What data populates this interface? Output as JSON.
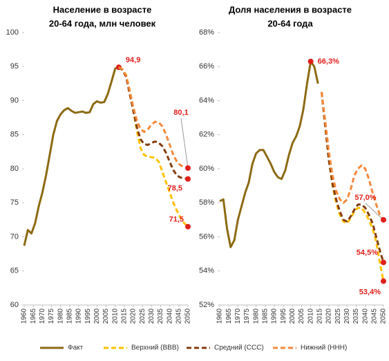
{
  "chart_data": [
    {
      "type": "line",
      "title": [
        "Население в возрасте",
        "20-64 года, млн человек"
      ],
      "x": [
        1960,
        1962,
        1964,
        1966,
        1968,
        1970,
        1972,
        1974,
        1976,
        1978,
        1980,
        1982,
        1984,
        1986,
        1988,
        1990,
        1992,
        1994,
        1996,
        1998,
        2000,
        2002,
        2004,
        2006,
        2008,
        2010,
        2012,
        2014,
        2016,
        2018,
        2020,
        2022,
        2024,
        2026,
        2028,
        2030,
        2032,
        2034,
        2036,
        2038,
        2040,
        2042,
        2044,
        2046,
        2048,
        2050
      ],
      "xlim": [
        1960,
        2050
      ],
      "xticks": [
        1960,
        1965,
        1970,
        1975,
        1980,
        1985,
        1990,
        1995,
        2000,
        2005,
        2010,
        2015,
        2020,
        2025,
        2030,
        2035,
        2040,
        2045,
        2050
      ],
      "ylim": [
        60,
        100
      ],
      "yticks": [
        60,
        65,
        70,
        75,
        80,
        85,
        90,
        95,
        100
      ],
      "grid": false,
      "series": [
        {
          "name": "Факт",
          "color": "#8c6a12",
          "style": "solid",
          "values": [
            68.7,
            71.0,
            70.5,
            72.0,
            74.5,
            76.5,
            79.0,
            82.0,
            85.0,
            87.0,
            88.0,
            88.6,
            88.9,
            88.5,
            88.2,
            88.3,
            88.4,
            88.2,
            88.3,
            89.5,
            89.9,
            89.7,
            89.8,
            91.0,
            92.8,
            94.7,
            94.9,
            94.5,
            null,
            null,
            null,
            null,
            null,
            null,
            null,
            null,
            null,
            null,
            null,
            null,
            null,
            null,
            null,
            null,
            null,
            null
          ],
          "value_labels": [
            null,
            null,
            null,
            null,
            null,
            null,
            null,
            null,
            null,
            null,
            null,
            null,
            null,
            null,
            null,
            null,
            null,
            null,
            null,
            null,
            null,
            null,
            null,
            null,
            null,
            null,
            "94,9",
            null,
            null,
            null,
            null,
            null,
            null,
            null,
            null,
            null,
            null,
            null,
            null,
            null,
            null,
            null,
            null,
            null,
            null,
            null
          ]
        },
        {
          "name": "Верхний (ВВВ)",
          "color": "#ffc000",
          "style": "dashed",
          "values": [
            null,
            null,
            null,
            null,
            null,
            null,
            null,
            null,
            null,
            null,
            null,
            null,
            null,
            null,
            null,
            null,
            null,
            null,
            null,
            null,
            null,
            null,
            null,
            null,
            null,
            null,
            94.9,
            94.5,
            93.8,
            91.5,
            88.5,
            85.5,
            83.0,
            82.0,
            81.8,
            81.7,
            81.6,
            81.0,
            79.5,
            78.0,
            76.5,
            75.0,
            73.8,
            72.8,
            72.0,
            71.5
          ],
          "value_labels": [
            null,
            null,
            null,
            null,
            null,
            null,
            null,
            null,
            null,
            null,
            null,
            null,
            null,
            null,
            null,
            null,
            null,
            null,
            null,
            null,
            null,
            null,
            null,
            null,
            null,
            null,
            null,
            null,
            null,
            null,
            null,
            null,
            null,
            null,
            null,
            null,
            null,
            null,
            null,
            null,
            null,
            null,
            null,
            null,
            null,
            "71,5"
          ]
        },
        {
          "name": "Средний (ССС)",
          "color": "#843c0c",
          "style": "dashed",
          "values": [
            null,
            null,
            null,
            null,
            null,
            null,
            null,
            null,
            null,
            null,
            null,
            null,
            null,
            null,
            null,
            null,
            null,
            null,
            null,
            null,
            null,
            null,
            null,
            null,
            null,
            null,
            94.9,
            94.5,
            93.5,
            91.0,
            88.5,
            86.0,
            84.3,
            83.6,
            83.5,
            83.8,
            84.0,
            83.8,
            83.3,
            82.3,
            81.0,
            79.8,
            79.0,
            78.7,
            78.6,
            78.5
          ],
          "value_labels": [
            null,
            null,
            null,
            null,
            null,
            null,
            null,
            null,
            null,
            null,
            null,
            null,
            null,
            null,
            null,
            null,
            null,
            null,
            null,
            null,
            null,
            null,
            null,
            null,
            null,
            null,
            null,
            null,
            null,
            null,
            null,
            null,
            null,
            null,
            null,
            null,
            null,
            null,
            null,
            null,
            null,
            null,
            null,
            null,
            null,
            "78,5"
          ]
        },
        {
          "name": "Нижний (ННН)",
          "color": "#f4883a",
          "style": "dashed",
          "values": [
            null,
            null,
            null,
            null,
            null,
            null,
            null,
            null,
            null,
            null,
            null,
            null,
            null,
            null,
            null,
            null,
            null,
            null,
            null,
            null,
            null,
            null,
            null,
            null,
            null,
            null,
            94.9,
            94.6,
            93.7,
            91.5,
            89.0,
            87.0,
            85.8,
            85.4,
            85.8,
            86.5,
            86.9,
            86.8,
            86.2,
            85.0,
            83.5,
            82.0,
            81.0,
            80.5,
            80.2,
            80.1
          ],
          "value_labels": [
            null,
            null,
            null,
            null,
            null,
            null,
            null,
            null,
            null,
            null,
            null,
            null,
            null,
            null,
            null,
            null,
            null,
            null,
            null,
            null,
            null,
            null,
            null,
            null,
            null,
            null,
            null,
            null,
            null,
            null,
            null,
            null,
            null,
            null,
            null,
            null,
            null,
            null,
            null,
            null,
            null,
            null,
            null,
            null,
            null,
            "80,1"
          ]
        }
      ]
    },
    {
      "type": "line",
      "title": [
        "Доля населения в возрасте",
        "20-64 года"
      ],
      "x": [
        1960,
        1962,
        1964,
        1966,
        1968,
        1970,
        1972,
        1974,
        1976,
        1978,
        1980,
        1982,
        1984,
        1986,
        1988,
        1990,
        1992,
        1994,
        1996,
        1998,
        2000,
        2002,
        2004,
        2006,
        2008,
        2010,
        2012,
        2014,
        2016,
        2018,
        2020,
        2022,
        2024,
        2026,
        2028,
        2030,
        2032,
        2034,
        2036,
        2038,
        2040,
        2042,
        2044,
        2046,
        2048,
        2050
      ],
      "xlim": [
        1960,
        2050
      ],
      "xticks": [
        1960,
        1965,
        1970,
        1975,
        1980,
        1985,
        1990,
        1995,
        2000,
        2005,
        2010,
        2015,
        2020,
        2025,
        2030,
        2035,
        2040,
        2045,
        2050
      ],
      "ylim": [
        52,
        68
      ],
      "yticks": [
        {
          "value": 52,
          "label": "52%"
        },
        {
          "value": 54,
          "label": "54%"
        },
        {
          "value": 56,
          "label": "56%"
        },
        {
          "value": 58,
          "label": "58%"
        },
        {
          "value": 60,
          "label": "60%"
        },
        {
          "value": 62,
          "label": "62%"
        },
        {
          "value": 64,
          "label": "64%"
        },
        {
          "value": 66,
          "label": "66%"
        },
        {
          "value": 68,
          "label": "68%"
        }
      ],
      "grid": false,
      "series": [
        {
          "color": "#8c6a12",
          "style": "solid",
          "values": [
            58.1,
            58.2,
            56.5,
            55.4,
            55.8,
            57.0,
            57.8,
            58.6,
            59.2,
            60.3,
            60.9,
            61.1,
            61.1,
            60.7,
            60.3,
            59.8,
            59.5,
            59.4,
            59.9,
            60.8,
            61.5,
            61.9,
            62.5,
            63.5,
            65.0,
            66.3,
            66.0,
            65.0,
            null,
            null,
            null,
            null,
            null,
            null,
            null,
            null,
            null,
            null,
            null,
            null,
            null,
            null,
            null,
            null,
            null,
            null
          ],
          "value_labels": [
            null,
            null,
            null,
            null,
            null,
            null,
            null,
            null,
            null,
            null,
            null,
            null,
            null,
            null,
            null,
            null,
            null,
            null,
            null,
            null,
            null,
            null,
            null,
            null,
            null,
            "66,3%",
            null,
            null,
            null,
            null,
            null,
            null,
            null,
            null,
            null,
            null,
            null,
            null,
            null,
            null,
            null,
            null,
            null,
            null,
            null,
            null
          ]
        },
        {
          "color": "#ffc000",
          "style": "dashed",
          "values": [
            null,
            null,
            null,
            null,
            null,
            null,
            null,
            null,
            null,
            null,
            null,
            null,
            null,
            null,
            null,
            null,
            null,
            null,
            null,
            null,
            null,
            null,
            null,
            null,
            null,
            null,
            null,
            null,
            64.5,
            62.5,
            60.5,
            59.0,
            58.0,
            57.3,
            56.9,
            56.8,
            57.1,
            57.5,
            57.7,
            57.7,
            57.4,
            57.0,
            56.5,
            55.7,
            54.5,
            53.4
          ],
          "value_labels": [
            null,
            null,
            null,
            null,
            null,
            null,
            null,
            null,
            null,
            null,
            null,
            null,
            null,
            null,
            null,
            null,
            null,
            null,
            null,
            null,
            null,
            null,
            null,
            null,
            null,
            null,
            null,
            null,
            null,
            null,
            null,
            null,
            null,
            null,
            null,
            null,
            null,
            null,
            null,
            null,
            null,
            null,
            null,
            null,
            null,
            "53,4%"
          ]
        },
        {
          "color": "#843c0c",
          "style": "dashed",
          "values": [
            null,
            null,
            null,
            null,
            null,
            null,
            null,
            null,
            null,
            null,
            null,
            null,
            null,
            null,
            null,
            null,
            null,
            null,
            null,
            null,
            null,
            null,
            null,
            null,
            null,
            null,
            null,
            null,
            64.5,
            62.5,
            60.5,
            59.1,
            58.2,
            57.5,
            57.0,
            56.9,
            57.2,
            57.6,
            57.9,
            57.9,
            57.7,
            57.3,
            56.8,
            56.0,
            55.2,
            54.5
          ],
          "value_labels": [
            null,
            null,
            null,
            null,
            null,
            null,
            null,
            null,
            null,
            null,
            null,
            null,
            null,
            null,
            null,
            null,
            null,
            null,
            null,
            null,
            null,
            null,
            null,
            null,
            null,
            null,
            null,
            null,
            null,
            null,
            null,
            null,
            null,
            null,
            null,
            null,
            null,
            null,
            null,
            null,
            null,
            null,
            null,
            null,
            null,
            "54,5%"
          ]
        },
        {
          "color": "#f4883a",
          "style": "dashed",
          "values": [
            null,
            null,
            null,
            null,
            null,
            null,
            null,
            null,
            null,
            null,
            null,
            null,
            null,
            null,
            null,
            null,
            null,
            null,
            null,
            null,
            null,
            null,
            null,
            null,
            null,
            null,
            null,
            null,
            64.5,
            62.8,
            61.0,
            59.6,
            58.7,
            58.2,
            58.0,
            58.2,
            58.8,
            59.6,
            60.0,
            60.2,
            60.0,
            59.4,
            58.6,
            57.9,
            57.3,
            57.0
          ],
          "value_labels": [
            null,
            null,
            null,
            null,
            null,
            null,
            null,
            null,
            null,
            null,
            null,
            null,
            null,
            null,
            null,
            null,
            null,
            null,
            null,
            null,
            null,
            null,
            null,
            null,
            null,
            null,
            null,
            null,
            null,
            null,
            null,
            null,
            null,
            null,
            null,
            null,
            null,
            null,
            null,
            null,
            null,
            null,
            null,
            null,
            null,
            "57,0%"
          ]
        }
      ]
    }
  ]
}
